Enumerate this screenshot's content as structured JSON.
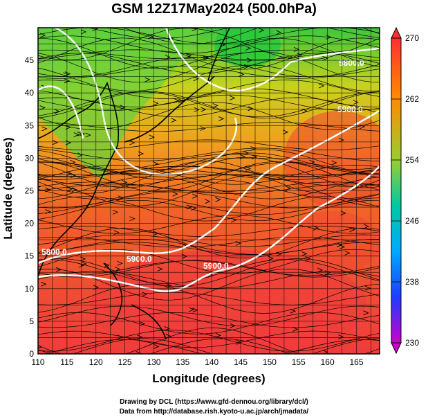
{
  "title": "GSM 12Z17May2024 (500.0hPa)",
  "axes": {
    "xlabel": "Longitude (degrees)",
    "ylabel": "Latitude  (degrees)",
    "x_ticks": [
      "110",
      "115",
      "120",
      "125",
      "130",
      "135",
      "140",
      "145",
      "150",
      "155",
      "160",
      "165"
    ],
    "y_ticks": [
      "0",
      "5",
      "10",
      "15",
      "20",
      "25",
      "30",
      "35",
      "40",
      "45"
    ]
  },
  "colorbar": {
    "labels": [
      "270",
      "262",
      "254",
      "246",
      "238",
      "230"
    ],
    "colors": [
      "#ff3030",
      "#ff8c00",
      "#ffd700",
      "#32cd32",
      "#00bfff",
      "#1e3cff",
      "#cc00cc"
    ]
  },
  "contours": {
    "labels": [
      "5800.0",
      "5900.0",
      "5900.0",
      "5900.0",
      "5800.0"
    ]
  },
  "credits": {
    "line1": "Drawing by DCL (https://www.gfd-dennou.org/library/dcl/)",
    "line2": "Data from http://database.rish.kyoto-u.ac.jp/arch/jmadata/"
  },
  "chart_data": {
    "type": "heatmap",
    "title": "GSM 12Z17May2024 (500.0hPa)",
    "xlabel": "Longitude (degrees)",
    "ylabel": "Latitude  (degrees)",
    "xlim": [
      110,
      169
    ],
    "ylim": [
      0,
      50
    ],
    "colorbar_range": [
      230,
      270
    ],
    "colorbar_ticks": [
      270,
      262,
      254,
      246,
      238,
      230
    ],
    "grid": true,
    "contour_levels": [
      5800.0,
      5900.0
    ]
  }
}
